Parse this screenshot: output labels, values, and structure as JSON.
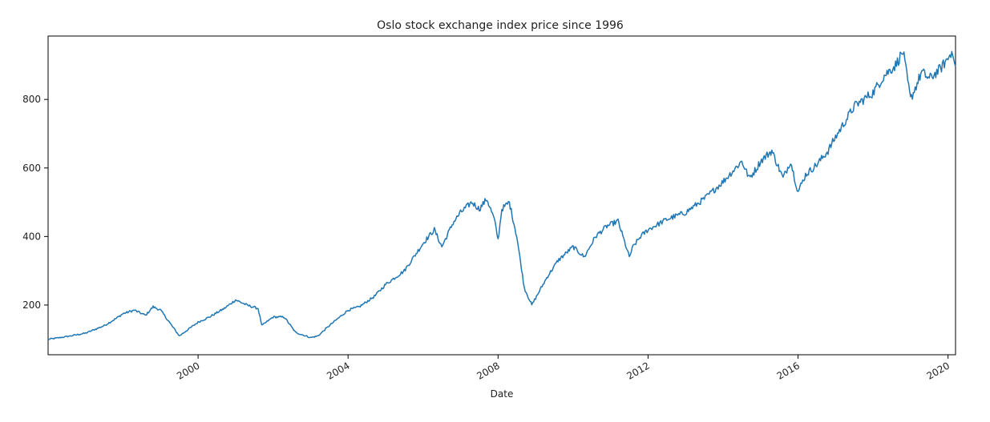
{
  "chart_data": {
    "type": "line",
    "title": "Oslo stock exchange index price since 1996",
    "xlabel": "Date",
    "ylabel": "",
    "xlim": [
      1996.0,
      2020.2
    ],
    "ylim": [
      55,
      985
    ],
    "x_ticks": [
      2000,
      2004,
      2008,
      2012,
      2016,
      2020
    ],
    "x_tick_labels": [
      "2000",
      "2004",
      "2008",
      "2012",
      "2016",
      "2020"
    ],
    "y_ticks": [
      200,
      400,
      600,
      800
    ],
    "y_tick_labels": [
      "200",
      "400",
      "600",
      "800"
    ],
    "grid": false,
    "legend": "none",
    "series": [
      {
        "name": "Oslo stock exchange index",
        "color": "#1f77b4",
        "x": [
          1996.0,
          1996.5,
          1997.0,
          1997.5,
          1997.8,
          1998.0,
          1998.3,
          1998.6,
          1998.8,
          1999.0,
          1999.5,
          2000.0,
          2000.3,
          2000.7,
          2001.0,
          2001.3,
          2001.6,
          2001.7,
          2002.0,
          2002.3,
          2002.6,
          2003.0,
          2003.2,
          2003.5,
          2004.0,
          2004.3,
          2004.7,
          2005.0,
          2005.5,
          2006.0,
          2006.3,
          2006.5,
          2006.8,
          2007.0,
          2007.3,
          2007.5,
          2007.7,
          2007.9,
          2008.0,
          2008.1,
          2008.3,
          2008.5,
          2008.7,
          2008.9,
          2009.0,
          2009.3,
          2009.6,
          2010.0,
          2010.3,
          2010.6,
          2010.9,
          2011.2,
          2011.5,
          2011.6,
          2011.8,
          2012.0,
          2012.5,
          2013.0,
          2013.5,
          2014.0,
          2014.5,
          2014.7,
          2014.9,
          2015.0,
          2015.3,
          2015.6,
          2015.8,
          2016.0,
          2016.2,
          2016.5,
          2016.8,
          2017.0,
          2017.5,
          2018.0,
          2018.3,
          2018.6,
          2018.8,
          2019.0,
          2019.3,
          2019.5,
          2019.8,
          2020.0,
          2020.1
        ],
        "values": [
          100,
          108,
          118,
          140,
          160,
          175,
          185,
          170,
          195,
          185,
          110,
          150,
          165,
          190,
          215,
          200,
          190,
          140,
          165,
          165,
          120,
          105,
          110,
          140,
          185,
          195,
          225,
          260,
          300,
          380,
          420,
          370,
          440,
          470,
          500,
          480,
          510,
          450,
          390,
          480,
          500,
          400,
          250,
          200,
          220,
          280,
          330,
          370,
          340,
          400,
          430,
          445,
          340,
          370,
          400,
          420,
          450,
          470,
          510,
          560,
          620,
          570,
          600,
          620,
          650,
          570,
          620,
          530,
          580,
          610,
          650,
          690,
          780,
          820,
          870,
          900,
          940,
          800,
          880,
          860,
          890,
          920,
          940
        ]
      }
    ]
  }
}
